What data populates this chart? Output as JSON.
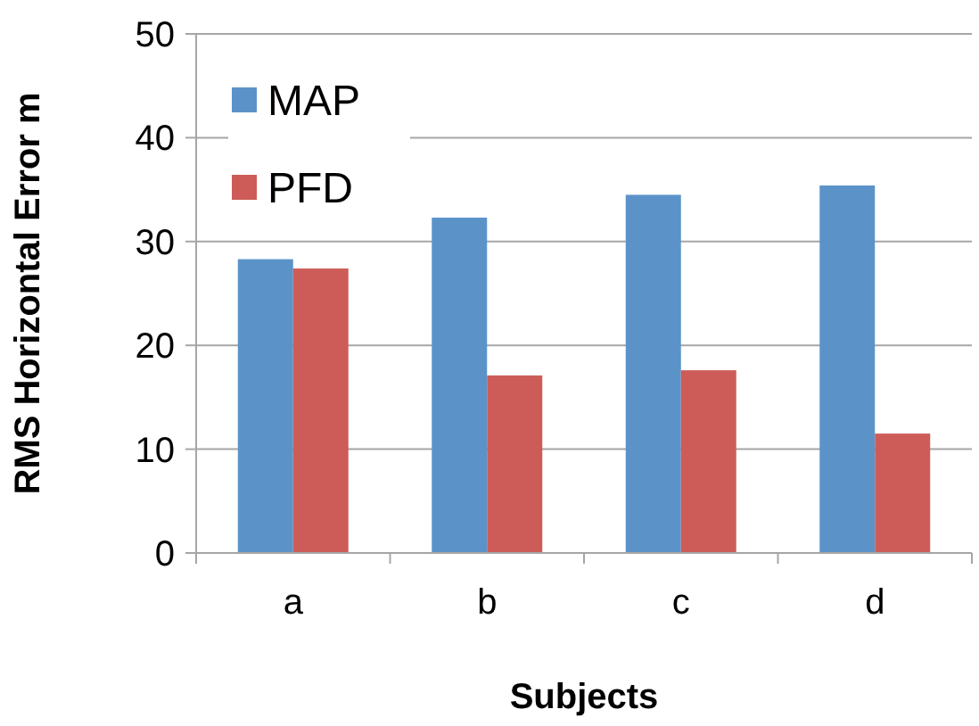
{
  "chart_data": {
    "type": "bar",
    "xlabel": "Subjects",
    "ylabel": "RMS Horizontal Error m",
    "categories": [
      "a",
      "b",
      "c",
      "d"
    ],
    "series": [
      {
        "name": "MAP",
        "color": "#5b93c9",
        "values": [
          28.3,
          32.3,
          34.5,
          35.4
        ]
      },
      {
        "name": "PFD",
        "color": "#cd5c58",
        "values": [
          27.4,
          17.1,
          17.6,
          11.5
        ]
      }
    ],
    "ylim": [
      0,
      50
    ],
    "yticks": [
      0,
      10,
      20,
      30,
      40,
      50
    ],
    "grid": "y",
    "legend": "top left"
  }
}
